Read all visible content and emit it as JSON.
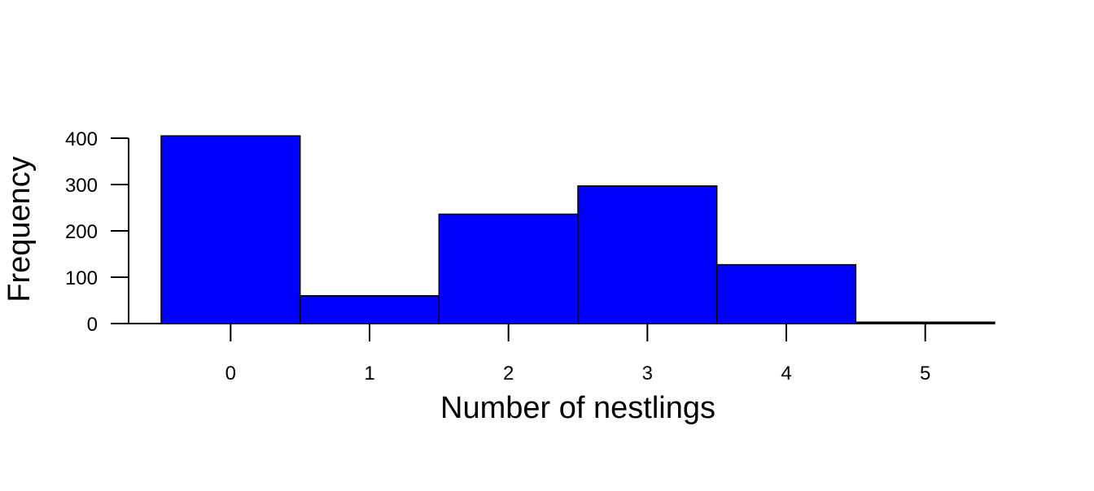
{
  "chart_data": {
    "type": "bar",
    "title": "",
    "xlabel": "Number of nestlings",
    "ylabel": "Frequency",
    "categories": [
      "0",
      "1",
      "2",
      "3",
      "4",
      "5"
    ],
    "x": [
      0,
      1,
      2,
      3,
      4,
      5
    ],
    "values": [
      405,
      60,
      236,
      297,
      127,
      3
    ],
    "xlim": [
      -0.5,
      5.5
    ],
    "ylim": [
      0,
      400
    ],
    "xticks": [
      "0",
      "1",
      "2",
      "3",
      "4",
      "5"
    ],
    "yticks": [
      "0",
      "100",
      "200",
      "300",
      "400"
    ],
    "bar_color": "#0000ff",
    "grid": false,
    "legend": "none"
  }
}
